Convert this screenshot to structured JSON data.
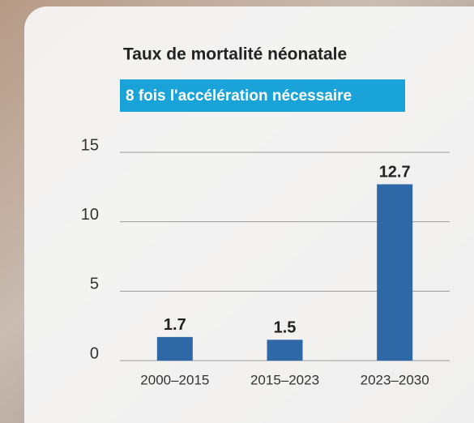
{
  "chart_data": {
    "type": "bar",
    "title": "Taux de mortalité néonatale",
    "subtitle": "8 fois l'accélération nécessaire",
    "categories": [
      "2000–2015",
      "2015–2023",
      "2023–2030"
    ],
    "values": [
      1.7,
      1.5,
      12.7
    ],
    "color": "#2e68a6",
    "ylim": [
      0,
      15
    ],
    "yticks": [
      0,
      5,
      10,
      15
    ],
    "grid": true
  }
}
